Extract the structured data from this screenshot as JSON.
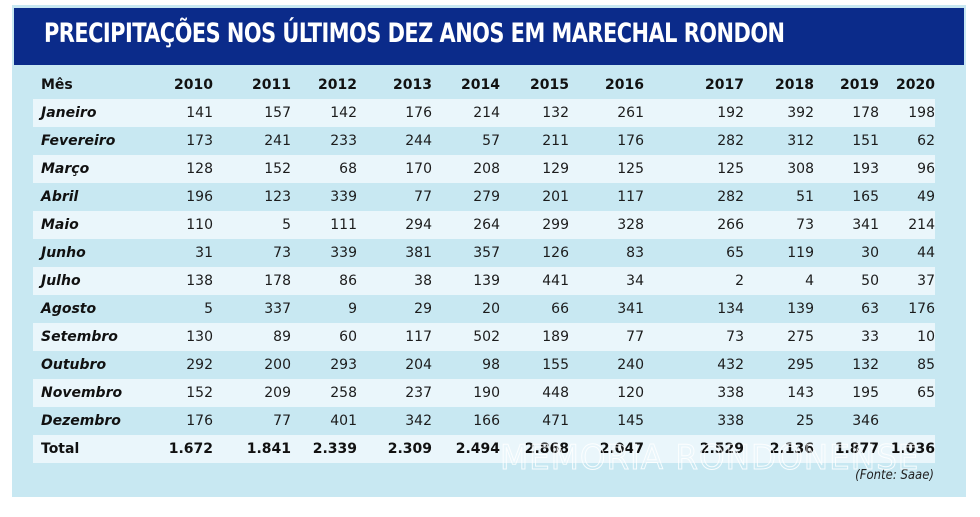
{
  "title": "PRECIPITAÇÕES NOS ÚLTIMOS DEZ ANOS EM MARECHAL RONDON",
  "source": "(Fonte: Saae)",
  "watermark": "MEMORIA RONDONENSE",
  "colors": {
    "header_band": "#0b2b8a",
    "panel": "#c8e8f2",
    "row_stripe": "#eaf6fb",
    "title_text": "#ffffff"
  },
  "table": {
    "header": [
      "Mês",
      "2010",
      "2011",
      "2012",
      "2013",
      "2014",
      "2015",
      "2016",
      "2017",
      "2018",
      "2019",
      "2020"
    ],
    "rows": [
      {
        "month": "Janeiro",
        "values": [
          "141",
          "157",
          "142",
          "176",
          "214",
          "132",
          "261",
          "192",
          "392",
          "178",
          "198"
        ]
      },
      {
        "month": "Fevereiro",
        "values": [
          "173",
          "241",
          "233",
          "244",
          "57",
          "211",
          "176",
          "282",
          "312",
          "151",
          "62"
        ]
      },
      {
        "month": "Março",
        "values": [
          "128",
          "152",
          "68",
          "170",
          "208",
          "129",
          "125",
          "125",
          "308",
          "193",
          "96"
        ]
      },
      {
        "month": "Abril",
        "values": [
          "196",
          "123",
          "339",
          "77",
          "279",
          "201",
          "117",
          "282",
          "51",
          "165",
          "49"
        ]
      },
      {
        "month": "Maio",
        "values": [
          "110",
          "5",
          "111",
          "294",
          "264",
          "299",
          "328",
          "266",
          "73",
          "341",
          "214"
        ]
      },
      {
        "month": "Junho",
        "values": [
          "31",
          "73",
          "339",
          "381",
          "357",
          "126",
          "83",
          "65",
          "119",
          "30",
          "44"
        ]
      },
      {
        "month": "Julho",
        "values": [
          "138",
          "178",
          "86",
          "38",
          "139",
          "441",
          "34",
          "2",
          "4",
          "50",
          "37"
        ]
      },
      {
        "month": "Agosto",
        "values": [
          "5",
          "337",
          "9",
          "29",
          "20",
          "66",
          "341",
          "134",
          "139",
          "63",
          "176"
        ]
      },
      {
        "month": "Setembro",
        "values": [
          "130",
          "89",
          "60",
          "117",
          "502",
          "189",
          "77",
          "73",
          "275",
          "33",
          "10"
        ]
      },
      {
        "month": "Outubro",
        "values": [
          "292",
          "200",
          "293",
          "204",
          "98",
          "155",
          "240",
          "432",
          "295",
          "132",
          "85"
        ]
      },
      {
        "month": "Novembro",
        "values": [
          "152",
          "209",
          "258",
          "237",
          "190",
          "448",
          "120",
          "338",
          "143",
          "195",
          "65"
        ]
      },
      {
        "month": "Dezembro",
        "values": [
          "176",
          "77",
          "401",
          "342",
          "166",
          "471",
          "145",
          "338",
          "25",
          "346",
          ""
        ]
      }
    ],
    "total": {
      "label": "Total",
      "values": [
        "1.672",
        "1.841",
        "2.339",
        "2.309",
        "2.494",
        "2.868",
        "2.047",
        "2.529",
        "2.136",
        "1.877",
        "1.036"
      ]
    }
  },
  "chart_data": {
    "type": "table",
    "title": "PRECIPITAÇÕES NOS ÚLTIMOS DEZ ANOS EM MARECHAL RONDON",
    "source": "Saae",
    "columns": [
      "Mês",
      "2010",
      "2011",
      "2012",
      "2013",
      "2014",
      "2015",
      "2016",
      "2017",
      "2018",
      "2019",
      "2020"
    ],
    "categories": [
      "Janeiro",
      "Fevereiro",
      "Março",
      "Abril",
      "Maio",
      "Junho",
      "Julho",
      "Agosto",
      "Setembro",
      "Outubro",
      "Novembro",
      "Dezembro"
    ],
    "series": [
      {
        "name": "2010",
        "values": [
          141,
          173,
          128,
          196,
          110,
          31,
          138,
          5,
          130,
          292,
          152,
          176
        ],
        "total": 1672
      },
      {
        "name": "2011",
        "values": [
          157,
          241,
          152,
          123,
          5,
          73,
          178,
          337,
          89,
          200,
          209,
          77
        ],
        "total": 1841
      },
      {
        "name": "2012",
        "values": [
          142,
          233,
          68,
          339,
          111,
          339,
          86,
          9,
          60,
          293,
          258,
          401
        ],
        "total": 2339
      },
      {
        "name": "2013",
        "values": [
          176,
          244,
          170,
          77,
          294,
          381,
          38,
          29,
          117,
          204,
          237,
          342
        ],
        "total": 2309
      },
      {
        "name": "2014",
        "values": [
          214,
          57,
          208,
          279,
          264,
          357,
          139,
          20,
          502,
          98,
          190,
          166
        ],
        "total": 2494
      },
      {
        "name": "2015",
        "values": [
          132,
          211,
          129,
          201,
          299,
          126,
          441,
          66,
          189,
          155,
          448,
          471
        ],
        "total": 2868
      },
      {
        "name": "2016",
        "values": [
          261,
          176,
          125,
          117,
          328,
          83,
          34,
          341,
          77,
          240,
          120,
          145
        ],
        "total": 2047
      },
      {
        "name": "2017",
        "values": [
          192,
          282,
          125,
          282,
          266,
          65,
          2,
          134,
          73,
          432,
          338,
          338
        ],
        "total": 2529
      },
      {
        "name": "2018",
        "values": [
          392,
          312,
          308,
          51,
          73,
          119,
          4,
          139,
          275,
          295,
          143,
          25
        ],
        "total": 2136
      },
      {
        "name": "2019",
        "values": [
          178,
          151,
          193,
          165,
          341,
          30,
          50,
          63,
          33,
          132,
          195,
          346
        ],
        "total": 1877
      },
      {
        "name": "2020",
        "values": [
          198,
          62,
          96,
          49,
          214,
          44,
          37,
          176,
          10,
          85,
          65,
          null
        ],
        "total": 1036
      }
    ]
  }
}
